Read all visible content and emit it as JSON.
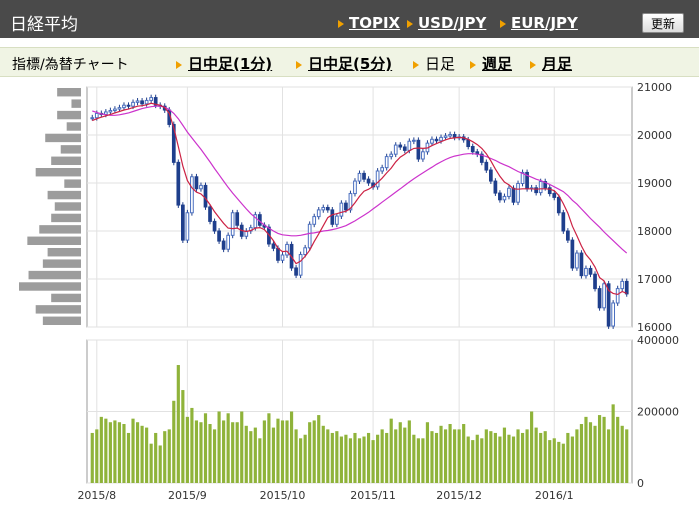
{
  "header": {
    "title": "日経平均",
    "links": [
      "TOPIX",
      "USD/JPY",
      "EUR/JPY"
    ],
    "refresh_label": "更新"
  },
  "subbar": {
    "label": "指標/為替チャート",
    "tabs": [
      {
        "label": "日中足(1分)",
        "active": false
      },
      {
        "label": "日中足(5分)",
        "active": false
      },
      {
        "label": "日足",
        "active": true
      },
      {
        "label": "週足",
        "active": false
      },
      {
        "label": "月足",
        "active": false
      }
    ]
  },
  "colors": {
    "up": "#4a6fc0",
    "down": "#1f3f8c",
    "ma_short": "#cc2244",
    "ma_long": "#cc33cc",
    "volume": "#8fb33a",
    "profile": "#9c9c9c"
  },
  "chart_data": [
    {
      "type": "candlestick",
      "ylim": [
        16000,
        21000
      ],
      "y_ticks": [
        "21000",
        "20000",
        "19000",
        "18000",
        "17000",
        "16000"
      ],
      "x_ticks": [
        "2015/8",
        "2015/9",
        "2015/10",
        "2015/11",
        "2015/12",
        "2016/1"
      ],
      "close": [
        20360,
        20450,
        20430,
        20480,
        20510,
        20540,
        20570,
        20620,
        20600,
        20680,
        20710,
        20650,
        20720,
        20780,
        20620,
        20600,
        20520,
        20220,
        19430,
        18540,
        17810,
        18380,
        19130,
        18880,
        18950,
        18500,
        18200,
        18000,
        17790,
        17620,
        17910,
        18380,
        18120,
        17890,
        18000,
        18070,
        18340,
        18120,
        18080,
        17730,
        17640,
        17390,
        17500,
        17720,
        17230,
        17080,
        17510,
        17650,
        18140,
        18300,
        18440,
        18490,
        18440,
        18140,
        18310,
        18580,
        18440,
        18780,
        19040,
        19200,
        19080,
        19000,
        18920,
        19250,
        19320,
        19550,
        19600,
        19790,
        19750,
        19680,
        19870,
        19890,
        19500,
        19650,
        19830,
        19910,
        19880,
        19950,
        19980,
        20010,
        19950,
        19960,
        19900,
        19760,
        19650,
        19600,
        19430,
        19270,
        19040,
        18790,
        18650,
        18720,
        18890,
        18600,
        18990,
        19220,
        18880,
        18900,
        18800,
        19030,
        18900,
        18780,
        18700,
        18380,
        18000,
        17810,
        17230,
        17540,
        17070,
        17220,
        17100,
        16800,
        16400,
        16900,
        16020,
        16500,
        16800,
        16950,
        16690
      ],
      "ma_short": [
        20300,
        20340,
        20370,
        20400,
        20430,
        20460,
        20490,
        20520,
        20540,
        20570,
        20600,
        20610,
        20630,
        20660,
        20640,
        20620,
        20570,
        20450,
        20150,
        19760,
        19350,
        19050,
        18900,
        18810,
        18770,
        18680,
        18550,
        18400,
        18280,
        18160,
        18060,
        18050,
        18060,
        18010,
        17990,
        18010,
        18060,
        18070,
        18030,
        17920,
        17800,
        17640,
        17570,
        17580,
        17460,
        17320,
        17370,
        17470,
        17600,
        17780,
        17940,
        18110,
        18280,
        18340,
        18360,
        18390,
        18410,
        18470,
        18590,
        18720,
        18830,
        18870,
        18930,
        19010,
        19100,
        19210,
        19310,
        19440,
        19540,
        19600,
        19670,
        19720,
        19730,
        19720,
        19730,
        19780,
        19820,
        19860,
        19900,
        19930,
        19940,
        19950,
        19940,
        19910,
        19860,
        19800,
        19720,
        19610,
        19460,
        19290,
        19140,
        19020,
        18960,
        18880,
        18870,
        18880,
        18880,
        18880,
        18870,
        18880,
        18880,
        18870,
        18840,
        18740,
        18570,
        18370,
        18100,
        17900,
        17690,
        17510,
        17400,
        17250,
        17030,
        16960,
        16760,
        16700,
        16680,
        16740,
        16700
      ],
      "ma_long": [
        20500,
        20470,
        20440,
        20420,
        20410,
        20410,
        20420,
        20440,
        20460,
        20490,
        20520,
        20550,
        20570,
        20590,
        20600,
        20600,
        20580,
        20530,
        20450,
        20340,
        20200,
        20060,
        19940,
        19820,
        19700,
        19570,
        19440,
        19300,
        19170,
        19040,
        18910,
        18790,
        18680,
        18570,
        18460,
        18360,
        18280,
        18200,
        18120,
        18060,
        18000,
        17950,
        17920,
        17910,
        17900,
        17900,
        17910,
        17930,
        17950,
        17960,
        17980,
        18000,
        18010,
        18030,
        18050,
        18080,
        18110,
        18160,
        18210,
        18270,
        18330,
        18390,
        18460,
        18530,
        18600,
        18670,
        18740,
        18810,
        18880,
        18950,
        19020,
        19090,
        19150,
        19210,
        19270,
        19330,
        19390,
        19440,
        19490,
        19530,
        19560,
        19580,
        19600,
        19610,
        19610,
        19600,
        19580,
        19550,
        19510,
        19470,
        19420,
        19380,
        19340,
        19290,
        19240,
        19200,
        19160,
        19120,
        19080,
        19050,
        19010,
        18970,
        18920,
        18870,
        18820,
        18740,
        18640,
        18560,
        18460,
        18360,
        18260,
        18170,
        18080,
        17980,
        17890,
        17800,
        17710,
        17620,
        17540
      ]
    },
    {
      "type": "bar",
      "ylim": [
        0,
        400000
      ],
      "y_ticks": [
        "400000",
        "200000",
        "0"
      ],
      "values": [
        140000,
        150000,
        185000,
        180000,
        170000,
        175000,
        170000,
        165000,
        140000,
        180000,
        170000,
        160000,
        155000,
        110000,
        140000,
        105000,
        145000,
        150000,
        230000,
        330000,
        260000,
        185000,
        210000,
        175000,
        170000,
        195000,
        165000,
        150000,
        200000,
        175000,
        195000,
        170000,
        170000,
        200000,
        160000,
        145000,
        155000,
        125000,
        175000,
        195000,
        155000,
        180000,
        175000,
        175000,
        200000,
        150000,
        125000,
        135000,
        170000,
        175000,
        190000,
        160000,
        150000,
        140000,
        145000,
        130000,
        135000,
        125000,
        140000,
        125000,
        130000,
        140000,
        120000,
        135000,
        150000,
        140000,
        180000,
        150000,
        170000,
        155000,
        175000,
        135000,
        125000,
        125000,
        170000,
        145000,
        140000,
        160000,
        150000,
        165000,
        150000,
        150000,
        165000,
        130000,
        120000,
        135000,
        125000,
        150000,
        145000,
        140000,
        130000,
        155000,
        135000,
        130000,
        150000,
        140000,
        150000,
        200000,
        155000,
        140000,
        145000,
        120000,
        125000,
        115000,
        110000,
        140000,
        130000,
        150000,
        165000,
        185000,
        170000,
        160000,
        190000,
        185000,
        150000,
        220000,
        185000,
        160000,
        150000
      ],
      "price_profile": [
        20,
        8,
        20,
        12,
        30,
        17,
        25,
        38,
        14,
        28,
        22,
        25,
        35,
        45,
        28,
        32,
        44,
        52,
        25,
        38,
        32
      ]
    }
  ]
}
